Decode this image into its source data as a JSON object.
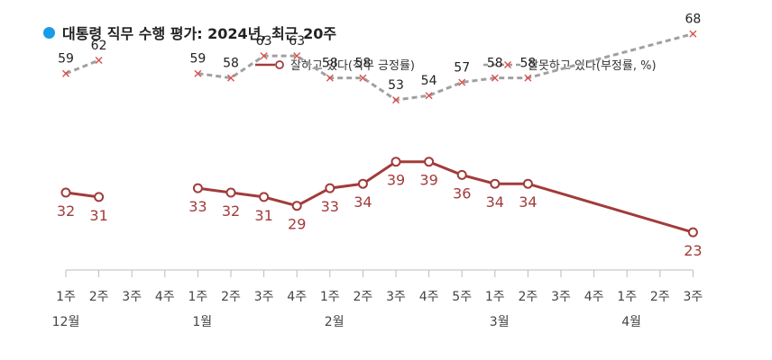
{
  "title": {
    "text": "대통령 직무 수행 평가: 2024년, 최근 20주",
    "dot_color": "#1a9be8"
  },
  "chart_data": {
    "type": "line",
    "title": "대통령 직무 수행 평가: 2024년, 최근 20주",
    "categories": [
      "1주",
      "2주",
      "3주",
      "4주",
      "1주",
      "2주",
      "3주",
      "4주",
      "1주",
      "2주",
      "3주",
      "4주",
      "5주",
      "1주",
      "2주",
      "3주",
      "4주",
      "1주",
      "2주",
      "3주"
    ],
    "month_labels": [
      {
        "label": "12월",
        "index": 0
      },
      {
        "label": "1월",
        "index": 4
      },
      {
        "label": "2월",
        "index": 8
      },
      {
        "label": "3월",
        "index": 13
      },
      {
        "label": "4월",
        "index": 17
      }
    ],
    "ylim": [
      0,
      80
    ],
    "grid": false,
    "legend_position": "top-right",
    "series": [
      {
        "name": "잘하고 있다(직무 긍정률)",
        "color": "#a23b3b",
        "marker": "circle",
        "line_style": "solid",
        "values": [
          32,
          31,
          null,
          null,
          33,
          32,
          31,
          29,
          33,
          34,
          39,
          39,
          36,
          34,
          34,
          null,
          null,
          null,
          null,
          23
        ]
      },
      {
        "name": "잘못하고 있다(부정률, %)",
        "color": "#a0a0a0",
        "marker": "x",
        "marker_color": "#d9534f",
        "line_style": "dashed",
        "values": [
          59,
          62,
          null,
          null,
          59,
          58,
          63,
          63,
          58,
          58,
          53,
          54,
          57,
          58,
          58,
          null,
          null,
          null,
          null,
          68
        ]
      }
    ]
  }
}
